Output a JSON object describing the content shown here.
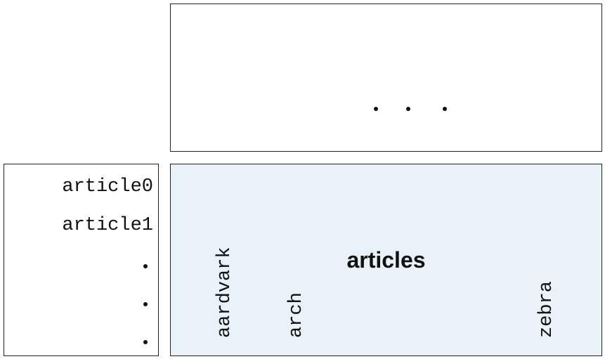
{
  "columns": {
    "labels": [
      "aardvark",
      "arch",
      "zebra"
    ]
  },
  "rows": {
    "labels": [
      "article0",
      "article1"
    ]
  },
  "matrix": {
    "label": "articles",
    "fill_color": "#e8f2f8"
  },
  "colors": {
    "border": "#222222",
    "text": "#111111"
  }
}
